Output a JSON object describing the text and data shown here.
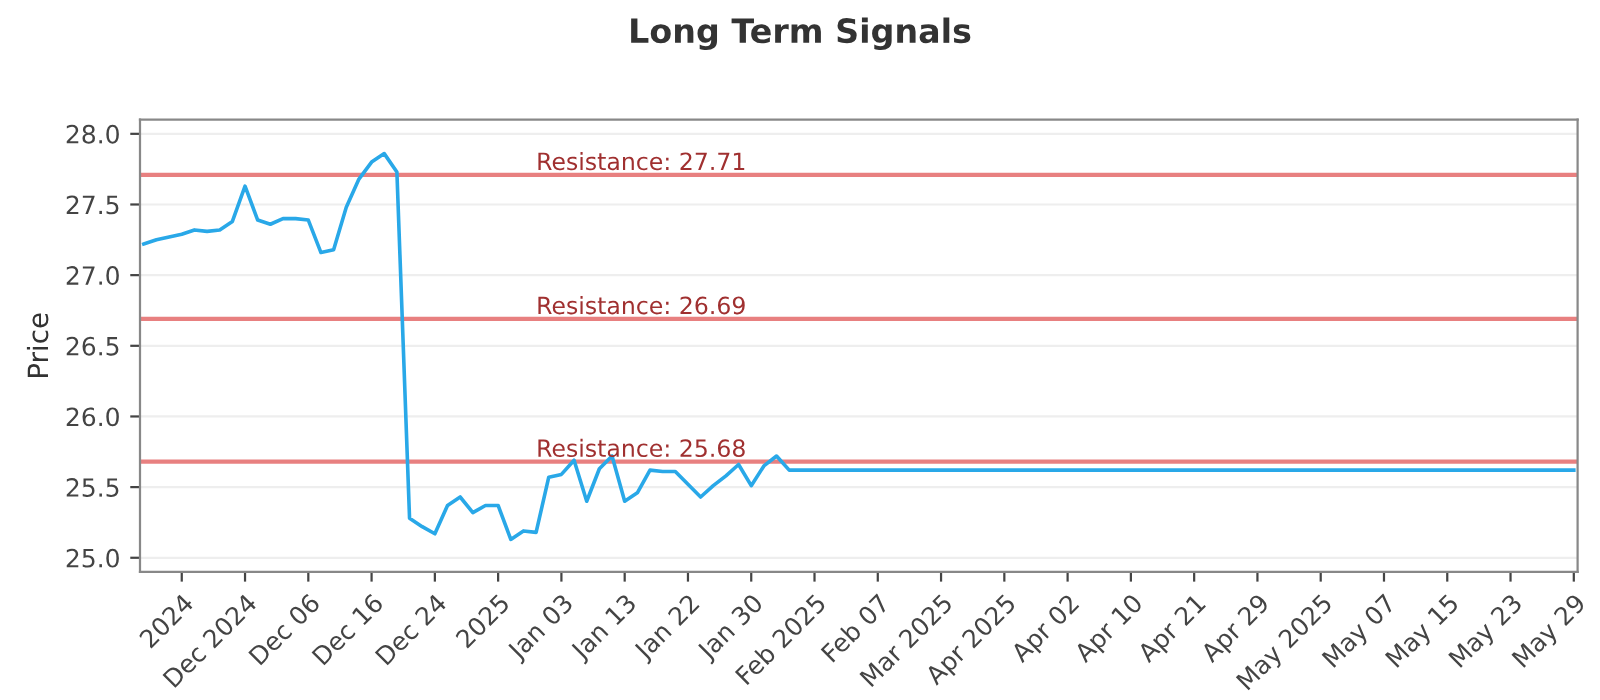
{
  "chart_data": {
    "type": "line",
    "title": "Long Term Signals",
    "ylabel": "Price",
    "categories": [
      null,
      null,
      null,
      "2024",
      null,
      null,
      null,
      null,
      "Dec 2024",
      null,
      null,
      null,
      null,
      "Dec 06",
      null,
      null,
      null,
      null,
      "Dec 16",
      null,
      null,
      null,
      null,
      "Dec 24",
      null,
      null,
      null,
      null,
      "2025",
      null,
      null,
      null,
      null,
      "Jan 03",
      null,
      null,
      null,
      null,
      "Jan 13",
      null,
      null,
      null,
      null,
      "Jan 22",
      null,
      null,
      null,
      null,
      "Jan 30",
      null,
      null,
      null,
      null,
      "Feb 2025",
      null,
      null,
      null,
      null,
      "Feb 07",
      null,
      null,
      null,
      null,
      "Mar 2025",
      null,
      null,
      null,
      null,
      "Apr 2025",
      null,
      null,
      null,
      null,
      "Apr 02",
      null,
      null,
      null,
      null,
      "Apr 10",
      null,
      null,
      null,
      null,
      "Apr 21",
      null,
      null,
      null,
      null,
      "Apr 29",
      null,
      null,
      null,
      null,
      "May 2025",
      null,
      null,
      null,
      null,
      "May 07",
      null,
      null,
      null,
      null,
      "May 15",
      null,
      null,
      null,
      null,
      "May 23",
      null,
      null,
      null,
      null,
      "May 29"
    ],
    "series": [
      {
        "color": "#29a8e8",
        "values": [
          27.22,
          27.25,
          27.27,
          27.29,
          27.32,
          27.31,
          27.32,
          27.38,
          27.63,
          27.39,
          27.36,
          27.4,
          27.4,
          27.39,
          27.16,
          27.18,
          27.48,
          27.68,
          27.8,
          27.86,
          27.73,
          25.28,
          25.22,
          25.17,
          25.37,
          25.43,
          25.32,
          25.37,
          25.37,
          25.13,
          25.19,
          25.18,
          25.57,
          25.59,
          25.69,
          25.4,
          25.63,
          25.72,
          25.4,
          25.46,
          25.62,
          25.61,
          25.61,
          25.52,
          25.43,
          25.51,
          25.58,
          25.66,
          25.51,
          25.65,
          25.72,
          25.62,
          25.62,
          25.62,
          25.62,
          25.62,
          25.62,
          25.62,
          25.62,
          25.62,
          25.62,
          25.62,
          25.62,
          25.62,
          25.62,
          25.62,
          25.62,
          25.62,
          25.62,
          25.62,
          25.62,
          25.62,
          25.62,
          25.62,
          25.62,
          25.62,
          25.62,
          25.62,
          25.62,
          25.62,
          25.62,
          25.62,
          25.62,
          25.62,
          25.62,
          25.62,
          25.62,
          25.62,
          25.62,
          25.62,
          25.62,
          25.62,
          25.62,
          25.62,
          25.62,
          25.62,
          25.62,
          25.62,
          25.62,
          25.62,
          25.62,
          25.62,
          25.62,
          25.62,
          25.62,
          25.62,
          25.62,
          25.62,
          25.62,
          25.62,
          25.62,
          25.62,
          25.62,
          25.62
        ]
      }
    ],
    "ylim": [
      24.9,
      28.1
    ],
    "yticks": [
      {
        "value": 25,
        "label": "25.0"
      },
      25.5,
      {
        "value": 26,
        "label": "26.0"
      },
      26.5,
      {
        "value": 27,
        "label": "27.0"
      },
      27.5,
      {
        "value": 28,
        "label": "28.0"
      }
    ],
    "ref_lines": [
      {
        "axis": "y",
        "value": 27.71,
        "label": "Resistance: 27.71",
        "color": "#e88080"
      },
      {
        "axis": "y",
        "value": 26.69,
        "label": "Resistance: 26.69",
        "color": "#e88080"
      },
      {
        "axis": "y",
        "value": 25.68,
        "label": "Resistance: 25.68",
        "color": "#e88080"
      }
    ],
    "grid": "y",
    "marker": "none",
    "line_style": "solid",
    "legend": false
  }
}
